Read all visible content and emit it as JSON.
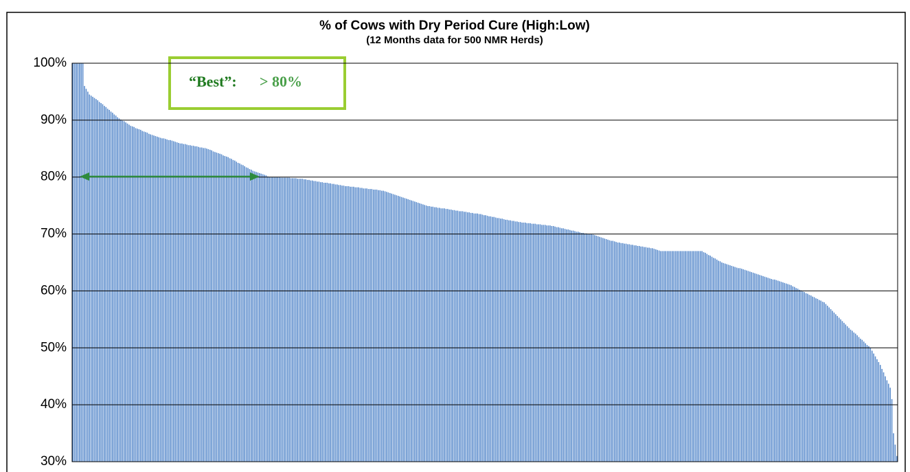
{
  "chart_data": {
    "type": "bar",
    "title": "% of Cows with Dry Period Cure (High:Low)",
    "subtitle": "(12 Months data for 500 NMR Herds)",
    "annotation": {
      "text": [
        "“Best”:",
        "> 80%"
      ]
    },
    "color": "#5b8ccc",
    "grid": true,
    "ylim": [
      30,
      100
    ],
    "yticks": [
      {
        "value": 30,
        "label": "30%"
      },
      {
        "value": 40,
        "label": "40%"
      },
      {
        "value": 50,
        "label": "50%"
      },
      {
        "value": 60,
        "label": "60%"
      },
      {
        "value": 70,
        "label": "70%"
      },
      {
        "value": 80,
        "label": "80%"
      },
      {
        "value": 90,
        "label": "90%"
      },
      {
        "value": 100,
        "label": "100%"
      }
    ],
    "values": [
      100,
      100,
      100,
      100,
      100,
      100,
      100,
      96,
      95.5,
      95,
      94.5,
      94.3,
      94.1,
      93.9,
      93.7,
      93.5,
      93.2,
      93.0,
      92.8,
      92.5,
      92.3,
      92.0,
      91.8,
      91.5,
      91.3,
      91.0,
      90.8,
      90.5,
      90.3,
      90.1,
      89.9,
      89.8,
      89.6,
      89.4,
      89.2,
      89.0,
      88.9,
      88.8,
      88.6,
      88.5,
      88.4,
      88.3,
      88.1,
      88.0,
      87.9,
      87.8,
      87.6,
      87.5,
      87.4,
      87.3,
      87.2,
      87.1,
      87.0,
      86.9,
      86.8,
      86.8,
      86.7,
      86.6,
      86.5,
      86.5,
      86.4,
      86.3,
      86.2,
      86.1,
      86.0,
      85.9,
      85.9,
      85.8,
      85.8,
      85.7,
      85.6,
      85.6,
      85.5,
      85.5,
      85.4,
      85.4,
      85.3,
      85.2,
      85.2,
      85.1,
      85.1,
      85.0,
      84.9,
      84.8,
      84.7,
      84.5,
      84.4,
      84.3,
      84.2,
      84.1,
      84.0,
      83.8,
      83.7,
      83.6,
      83.5,
      83.3,
      83.2,
      83.0,
      82.9,
      82.7,
      82.5,
      82.4,
      82.2,
      82.1,
      81.9,
      81.7,
      81.6,
      81.4,
      81.3,
      81.1,
      81.0,
      80.9,
      80.8,
      80.7,
      80.6,
      80.5,
      80.4,
      80.3,
      80.1,
      80.0,
      80.0,
      80.0,
      80.0,
      80.0,
      80.0,
      80.0,
      79.9,
      79.9,
      79.9,
      79.9,
      79.9,
      79.9,
      79.8,
      79.8,
      79.8,
      79.8,
      79.7,
      79.7,
      79.7,
      79.7,
      79.6,
      79.6,
      79.5,
      79.5,
      79.4,
      79.4,
      79.3,
      79.3,
      79.2,
      79.2,
      79.1,
      79.1,
      79.0,
      79.0,
      79.0,
      78.9,
      78.9,
      78.8,
      78.8,
      78.7,
      78.7,
      78.6,
      78.6,
      78.5,
      78.5,
      78.4,
      78.4,
      78.4,
      78.3,
      78.3,
      78.3,
      78.2,
      78.2,
      78.2,
      78.1,
      78.1,
      78.0,
      78.0,
      78.0,
      77.9,
      77.9,
      77.9,
      77.8,
      77.8,
      77.8,
      77.7,
      77.7,
      77.6,
      77.6,
      77.5,
      77.4,
      77.3,
      77.2,
      77.1,
      77.0,
      76.9,
      76.8,
      76.7,
      76.6,
      76.5,
      76.4,
      76.3,
      76.2,
      76.1,
      76.0,
      75.9,
      75.8,
      75.7,
      75.6,
      75.5,
      75.4,
      75.3,
      75.2,
      75.1,
      75.0,
      74.9,
      74.9,
      74.8,
      74.8,
      74.7,
      74.7,
      74.6,
      74.6,
      74.5,
      74.5,
      74.5,
      74.4,
      74.4,
      74.3,
      74.3,
      74.2,
      74.2,
      74.1,
      74.1,
      74.0,
      74.0,
      74.0,
      73.9,
      73.9,
      73.8,
      73.8,
      73.7,
      73.7,
      73.6,
      73.6,
      73.6,
      73.5,
      73.5,
      73.4,
      73.3,
      73.3,
      73.2,
      73.1,
      73.1,
      73.0,
      73.0,
      72.9,
      72.8,
      72.8,
      72.7,
      72.7,
      72.6,
      72.5,
      72.5,
      72.4,
      72.4,
      72.3,
      72.3,
      72.2,
      72.2,
      72.1,
      72.1,
      72.0,
      72.0,
      72.0,
      71.9,
      71.9,
      71.9,
      71.8,
      71.8,
      71.8,
      71.7,
      71.7,
      71.7,
      71.6,
      71.6,
      71.6,
      71.5,
      71.5,
      71.5,
      71.4,
      71.4,
      71.3,
      71.2,
      71.2,
      71.1,
      71.0,
      71.0,
      70.9,
      70.8,
      70.8,
      70.7,
      70.6,
      70.6,
      70.5,
      70.4,
      70.4,
      70.3,
      70.2,
      70.2,
      70.1,
      70.1,
      70.0,
      70.0,
      70.0,
      69.9,
      69.8,
      69.7,
      69.6,
      69.5,
      69.4,
      69.3,
      69.2,
      69.1,
      69.0,
      68.9,
      68.8,
      68.8,
      68.7,
      68.6,
      68.5,
      68.5,
      68.4,
      68.4,
      68.3,
      68.3,
      68.2,
      68.2,
      68.1,
      68.1,
      68.0,
      68.0,
      67.9,
      67.9,
      67.8,
      67.8,
      67.7,
      67.7,
      67.6,
      67.6,
      67.5,
      67.5,
      67.4,
      67.3,
      67.2,
      67.1,
      67.0,
      67,
      67,
      67,
      67,
      67,
      67,
      67,
      67,
      67,
      67,
      67,
      67,
      67,
      67,
      67,
      67,
      67,
      67,
      67,
      67,
      67,
      67,
      67,
      67,
      67,
      66.8,
      66.7,
      66.5,
      66.3,
      66.2,
      66.0,
      65.8,
      65.7,
      65.5,
      65.3,
      65.2,
      65.0,
      64.9,
      64.8,
      64.7,
      64.6,
      64.5,
      64.4,
      64.3,
      64.2,
      64.1,
      64.0,
      64.0,
      63.9,
      63.8,
      63.7,
      63.6,
      63.5,
      63.4,
      63.3,
      63.2,
      63.1,
      63.0,
      62.9,
      62.8,
      62.7,
      62.6,
      62.5,
      62.4,
      62.3,
      62.2,
      62.1,
      62.0,
      62.0,
      61.9,
      61.8,
      61.7,
      61.6,
      61.5,
      61.4,
      61.3,
      61.2,
      61.1,
      61.0,
      60.8,
      60.7,
      60.5,
      60.4,
      60.2,
      60.1,
      59.9,
      59.8,
      59.6,
      59.5,
      59.3,
      59.2,
      59.0,
      58.9,
      58.7,
      58.6,
      58.4,
      58.3,
      58.1,
      58.0,
      57.7,
      57.4,
      57.1,
      56.8,
      56.5,
      56.2,
      55.9,
      55.6,
      55.3,
      55.0,
      54.7,
      54.4,
      54.1,
      53.8,
      53.5,
      53.2,
      53.0,
      52.7,
      52.5,
      52.2,
      51.9,
      51.6,
      51.4,
      51.1,
      50.8,
      50.5,
      50.3,
      50.0,
      49.5,
      49.0,
      48.5,
      48.0,
      47.5,
      47.0,
      46.3,
      45.7,
      45.0,
      44.3,
      43.7,
      43.0,
      41.0,
      35.0,
      33.0,
      31.0
    ]
  }
}
